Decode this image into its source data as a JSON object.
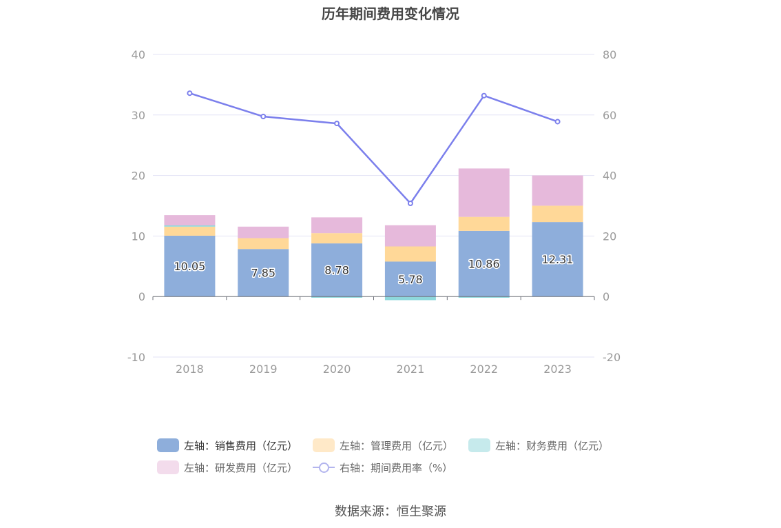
{
  "title": "历年期间费用变化情况",
  "source": "数据来源：恒生聚源",
  "colors": {
    "sales": "#8eaedb",
    "admin": "#ffd898",
    "finance": "#8ed8dc",
    "rd": "#e6b9db",
    "ratio": "#7b7fec",
    "grid": "#e3e3f5",
    "axis": "#6e7079",
    "tick": "#999999"
  },
  "legend": {
    "sales": "左轴：销售费用（亿元）",
    "admin": "左轴：管理费用（亿元）",
    "finance": "左轴：财务费用（亿元）",
    "rd": "左轴：研发费用（亿元）",
    "ratio": "右轴：期间费用率（%）"
  },
  "chart_data": {
    "type": "bar",
    "stacked": true,
    "title": "历年期间费用变化情况",
    "categories": [
      "2018",
      "2019",
      "2020",
      "2021",
      "2022",
      "2023"
    ],
    "y_left": {
      "min": -10,
      "max": 40,
      "ticks": [
        -10,
        0,
        10,
        20,
        30,
        40
      ]
    },
    "y_right": {
      "min": -20,
      "max": 80,
      "ticks": [
        -20,
        0,
        20,
        40,
        60,
        80
      ]
    },
    "grid": true,
    "legend_position": "bottom",
    "series": [
      {
        "name": "左轴：销售费用（亿元）",
        "key": "sales",
        "axis": "left",
        "values": [
          10.05,
          7.85,
          8.78,
          5.78,
          10.86,
          12.31
        ],
        "labels": [
          "10.05",
          "7.85",
          "8.78",
          "5.78",
          "10.86",
          "12.31"
        ]
      },
      {
        "name": "左轴：管理费用（亿元）",
        "key": "admin",
        "axis": "left",
        "values": [
          1.5,
          1.8,
          1.7,
          2.5,
          2.3,
          2.7
        ]
      },
      {
        "name": "左轴：财务费用（亿元）",
        "key": "finance",
        "axis": "left",
        "values": [
          0.2,
          0.0,
          -0.2,
          -0.6,
          -0.2,
          0.0
        ]
      },
      {
        "name": "左轴：研发费用（亿元）",
        "key": "rd",
        "axis": "left",
        "values": [
          1.7,
          1.9,
          2.6,
          3.5,
          8.0,
          5.0
        ]
      },
      {
        "name": "右轴：期间费用率（%）",
        "key": "ratio",
        "axis": "right",
        "type": "line",
        "values": [
          67.2,
          59.5,
          57.2,
          30.8,
          66.4,
          57.8
        ]
      }
    ]
  }
}
